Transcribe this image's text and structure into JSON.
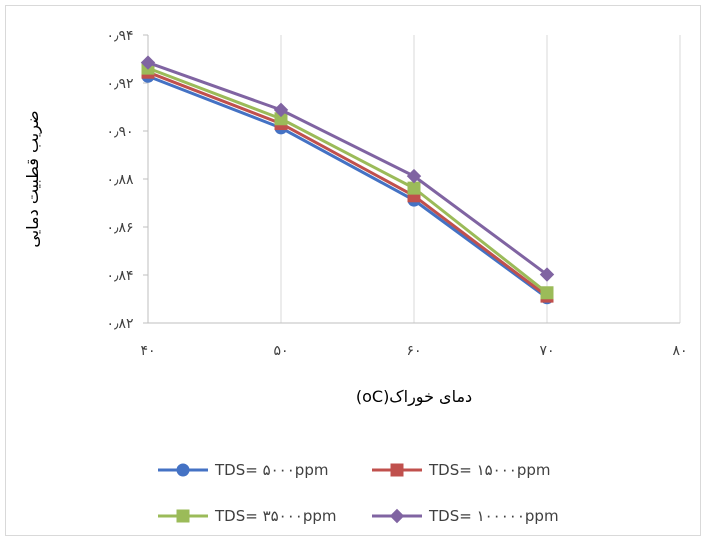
{
  "chart_data": {
    "type": "line",
    "xlabel": "دمای خوراک(oC)",
    "ylabel": "ضریب قطبیت دمایی",
    "xlim": [
      40,
      80
    ],
    "ylim": [
      0.82,
      0.94
    ],
    "x_ticks": [
      40,
      50,
      60,
      70,
      80
    ],
    "x_tick_labels": [
      "۴۰",
      "۵۰",
      "۶۰",
      "۷۰",
      "۸۰"
    ],
    "y_ticks": [
      0.82,
      0.84,
      0.86,
      0.88,
      0.9,
      0.92,
      0.94
    ],
    "y_tick_labels": [
      "۰٫۸۲",
      "۰٫۸۴",
      "۰٫۸۶",
      "۰٫۸۸",
      "۰٫۹۰",
      "۰٫۹۲",
      "۰٫۹۴"
    ],
    "grid": "vertical",
    "legend_position": "bottom",
    "series": [
      {
        "name": "TDS= ۵۰۰۰ppm",
        "color": "#4472C4",
        "marker": "circle",
        "x": [
          40,
          50,
          60,
          70
        ],
        "y": [
          0.9228,
          0.9013,
          0.8712,
          0.8305
        ]
      },
      {
        "name": "TDS= ۱۵۰۰۰ppm",
        "color": "#C0504D",
        "marker": "square",
        "x": [
          40,
          50,
          60,
          70
        ],
        "y": [
          0.9245,
          0.9031,
          0.873,
          0.8312
        ]
      },
      {
        "name": "TDS= ۳۵۰۰۰ppm",
        "color": "#9BBB59",
        "marker": "square",
        "x": [
          40,
          50,
          60,
          70
        ],
        "y": [
          0.9262,
          0.9051,
          0.8762,
          0.8326
        ]
      },
      {
        "name": "TDS= ۱۰۰۰۰۰ppm",
        "color": "#8064A2",
        "marker": "diamond",
        "x": [
          40,
          50,
          60,
          70
        ],
        "y": [
          0.9285,
          0.9088,
          0.8812,
          0.8402
        ]
      }
    ]
  }
}
